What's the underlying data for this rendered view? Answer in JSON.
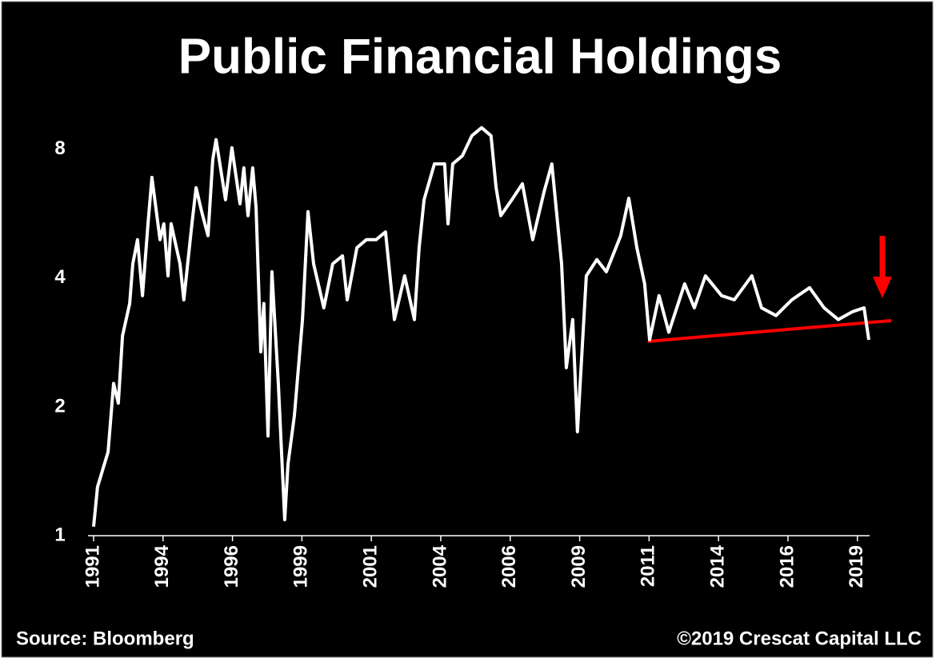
{
  "chart_data": {
    "type": "line",
    "title": "Public Financial Holdings",
    "source": "Source: Bloomberg",
    "copyright": "©2019 Crescat Capital LLC",
    "log_scale": true,
    "grid": false,
    "series": [
      {
        "color": "#ffffff",
        "x": [
          1991.0,
          1991.14,
          1991.52,
          1991.72,
          1991.89,
          1992.04,
          1992.3,
          1992.41,
          1992.58,
          1992.76,
          1992.96,
          1993.1,
          1993.39,
          1993.53,
          1993.68,
          1993.79,
          1994.11,
          1994.25,
          1994.54,
          1994.69,
          1994.89,
          1995.12,
          1995.29,
          1995.41,
          1995.75,
          1995.98,
          1996.27,
          1996.41,
          1996.56,
          1996.73,
          1996.85,
          1997.02,
          1997.13,
          1997.28,
          1997.42,
          1997.65,
          1997.88,
          1998.0,
          1998.23,
          1998.52,
          1998.72,
          1998.92,
          1999.29,
          1999.61,
          1999.96,
          2000.13,
          2000.48,
          2000.82,
          2001.17,
          2001.51,
          2001.83,
          2002.2,
          2002.55,
          2002.72,
          2002.9,
          2003.27,
          2003.64,
          2003.76,
          2003.93,
          2004.28,
          2004.62,
          2004.97,
          2005.31,
          2005.49,
          2005.66,
          2006.06,
          2006.44,
          2006.81,
          2007.22,
          2007.5,
          2007.85,
          2008.02,
          2008.25,
          2008.42,
          2008.74,
          2009.12,
          2009.46,
          2009.98,
          2010.27,
          2010.56,
          2010.84,
          2011.02,
          2011.36,
          2011.71,
          2012.28,
          2012.63,
          2013.03,
          2013.61,
          2014.07,
          2014.7,
          2015.05,
          2015.57,
          2016.14,
          2016.78,
          2017.3,
          2017.81,
          2018.33,
          2018.74,
          2018.91
        ],
        "values": [
          1.05,
          1.3,
          1.57,
          2.27,
          2.04,
          2.93,
          3.49,
          4.32,
          4.92,
          3.64,
          5.36,
          6.88,
          4.92,
          5.36,
          4.05,
          5.36,
          4.32,
          3.56,
          5.36,
          6.51,
          5.72,
          5.03,
          7.56,
          8.43,
          6.1,
          8.07,
          5.97,
          7.24,
          5.6,
          7.24,
          5.84,
          2.69,
          3.49,
          1.71,
          4.14,
          2.27,
          1.09,
          1.47,
          1.91,
          3.2,
          5.72,
          4.32,
          3.41,
          4.32,
          4.51,
          3.56,
          4.71,
          4.92,
          4.92,
          5.13,
          3.2,
          4.05,
          3.2,
          4.71,
          6.1,
          7.4,
          7.4,
          5.36,
          7.4,
          7.73,
          8.61,
          8.99,
          8.61,
          6.51,
          5.6,
          6.1,
          6.65,
          4.92,
          6.37,
          7.4,
          4.32,
          2.47,
          3.2,
          1.75,
          4.05,
          4.42,
          4.14,
          5.03,
          6.15,
          4.71,
          3.88,
          2.87,
          3.64,
          2.99,
          3.88,
          3.41,
          4.05,
          3.64,
          3.56,
          4.05,
          3.41,
          3.27,
          3.56,
          3.8,
          3.41,
          3.2,
          3.34,
          3.41,
          2.87
        ]
      }
    ],
    "xlim": [
      1991,
      2018.94
    ],
    "xticks": [
      1991,
      {
        "value": 1993.5,
        "label": "1994"
      },
      {
        "value": 1996,
        "label": "1996"
      },
      {
        "value": 1998.5,
        "label": "1999"
      },
      {
        "value": 2001,
        "label": "2001"
      },
      {
        "value": 2003.5,
        "label": "2004"
      },
      {
        "value": 2006,
        "label": "2006"
      },
      {
        "value": 2008.5,
        "label": "2009"
      },
      {
        "value": 2011,
        "label": "2011"
      },
      {
        "value": 2013.5,
        "label": "2014"
      },
      {
        "value": 2016,
        "label": "2016"
      },
      {
        "value": 2018.5,
        "label": "2019"
      }
    ],
    "ylim": [
      1,
      10
    ],
    "yticks": [
      1,
      2,
      4,
      8
    ]
  }
}
